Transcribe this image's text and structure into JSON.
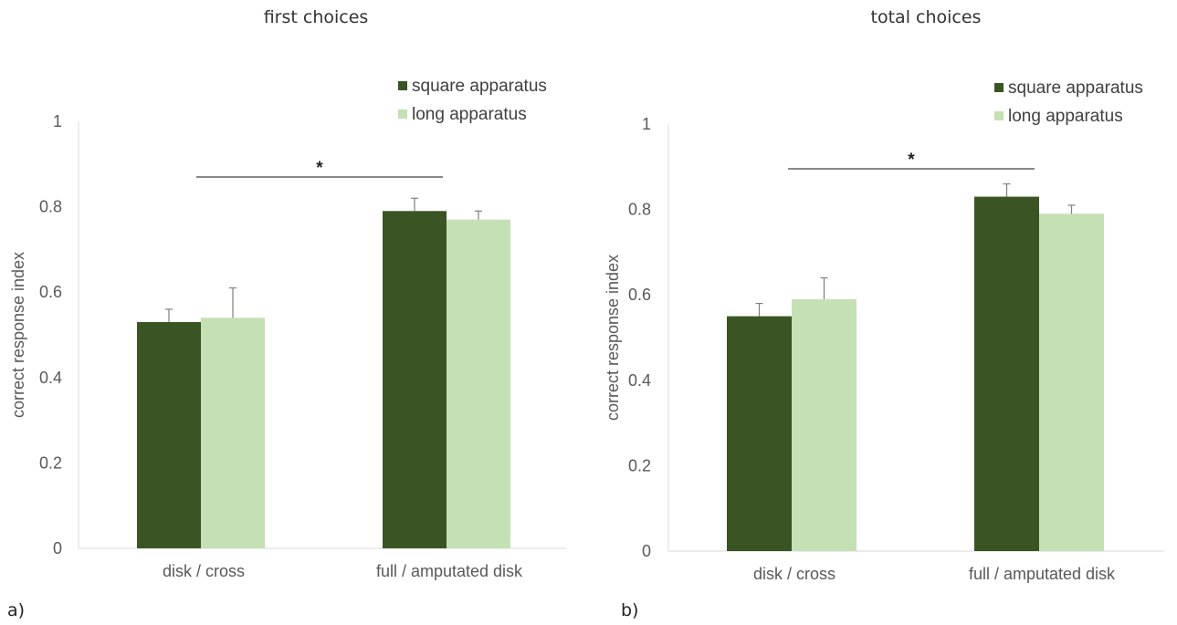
{
  "chart_data": [
    {
      "type": "bar",
      "title": "first choices",
      "panel_label": "a)",
      "categories": [
        "disk / cross",
        "full / amputated  disk"
      ],
      "series": [
        {
          "name": "square apparatus",
          "values": [
            0.53,
            0.79
          ],
          "errors": [
            0.03,
            0.03
          ],
          "color": "#3a5523"
        },
        {
          "name": "long apparatus",
          "values": [
            0.54,
            0.77
          ],
          "errors": [
            0.07,
            0.02
          ],
          "color": "#c5e0b4"
        }
      ],
      "ylabel": "correct response index",
      "ylim": [
        0,
        1
      ],
      "yticks": [
        "0",
        "0.2",
        "0.4",
        "0.6",
        "0.8",
        "1"
      ],
      "significance": "*",
      "legend_position": "top-right",
      "grid": false
    },
    {
      "type": "bar",
      "title": "total choices",
      "panel_label": "b)",
      "categories": [
        "disk / cross",
        "full / amputated disk"
      ],
      "series": [
        {
          "name": "square apparatus",
          "values": [
            0.55,
            0.83
          ],
          "errors": [
            0.03,
            0.03
          ],
          "color": "#3a5523"
        },
        {
          "name": "long apparatus",
          "values": [
            0.59,
            0.79
          ],
          "errors": [
            0.05,
            0.02
          ],
          "color": "#c5e0b4"
        }
      ],
      "ylabel": "correct response index",
      "ylim": [
        0,
        1
      ],
      "yticks": [
        "0",
        "0.2",
        "0.4",
        "0.6",
        "0.8",
        "1"
      ],
      "significance": "*",
      "legend_position": "top-right",
      "grid": false
    }
  ]
}
